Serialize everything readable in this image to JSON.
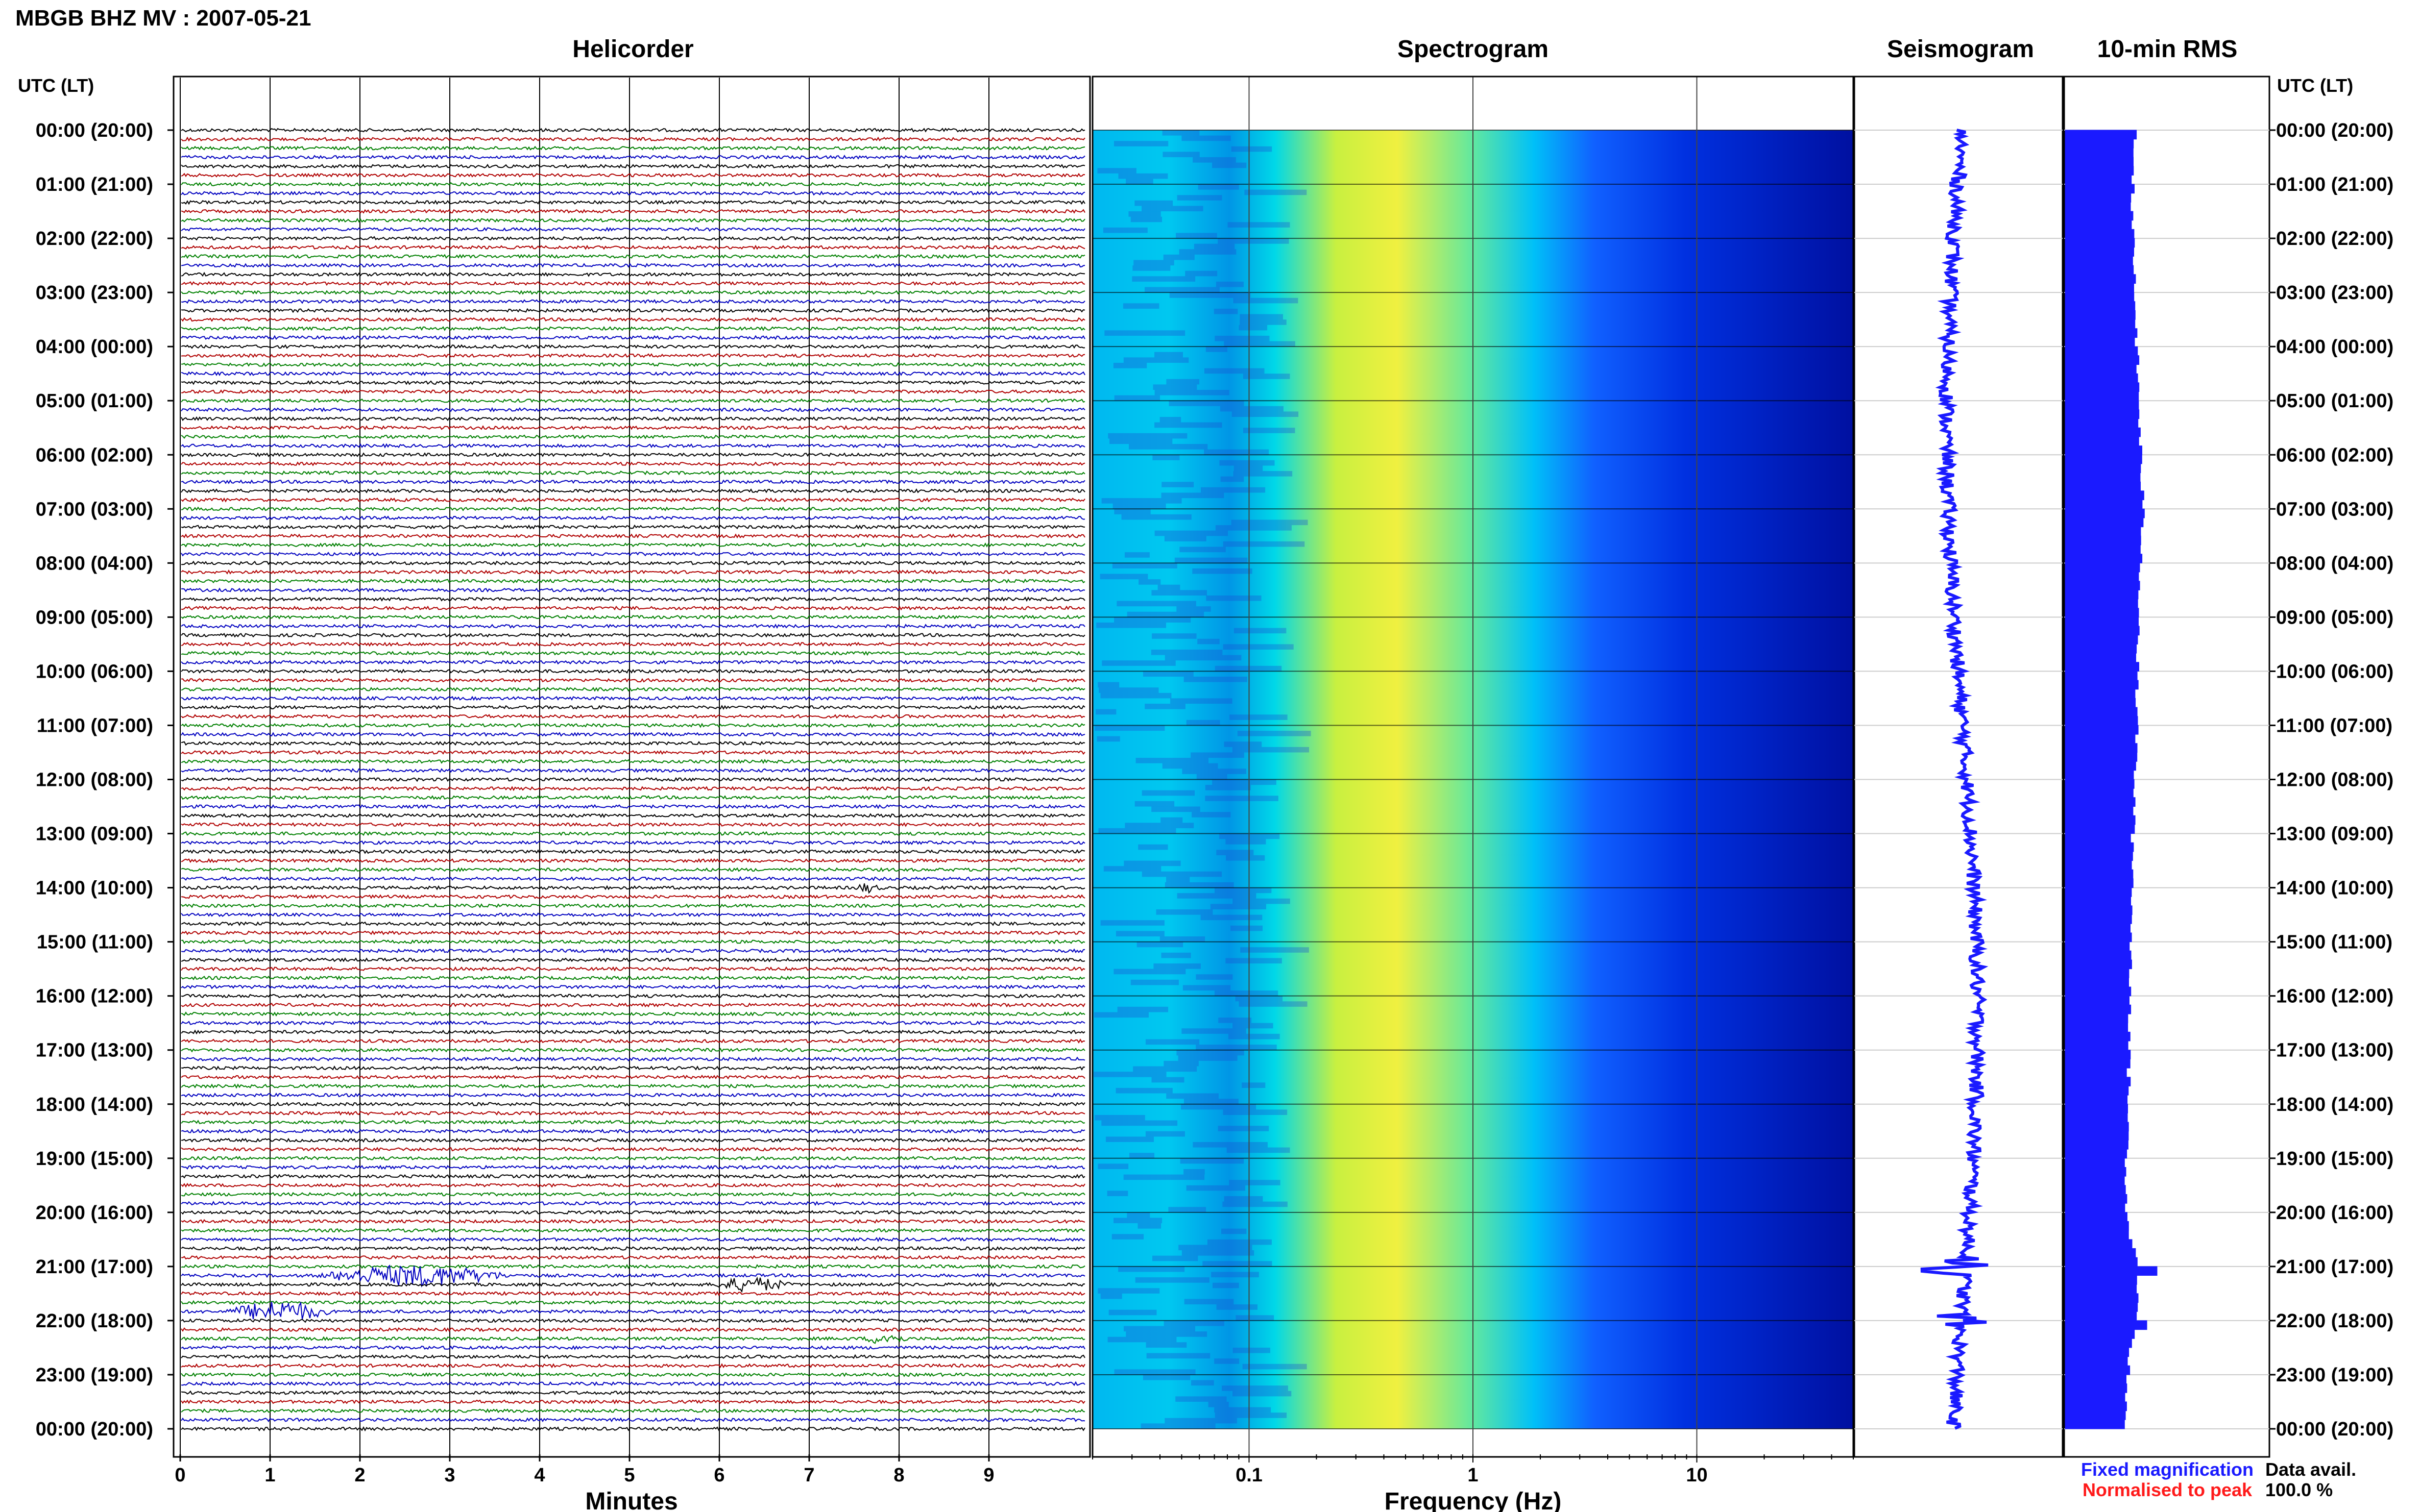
{
  "title": "MBGB BHZ MV : 2007-05-21",
  "panels": {
    "helicorder": "Helicorder",
    "spectrogram": "Spectrogram",
    "seismogram": "Seismogram",
    "rms": "10-min RMS"
  },
  "time_axis_label": "UTC (LT)",
  "legend": {
    "fixed": "Fixed magnification",
    "normalised": "Normalised to peak",
    "fixed_color": "#1a1aff",
    "normalised_color": "#ff1a1a"
  },
  "data_avail_label": "Data avail.",
  "data_avail_value": "100.0 %",
  "chart_data": [
    {
      "type": "line",
      "name": "helicorder",
      "title": "Helicorder",
      "xlabel": "Minutes",
      "x_ticks": [
        "0",
        "1",
        "2",
        "3",
        "4",
        "5",
        "6",
        "7",
        "8",
        "9"
      ],
      "xlim": [
        0,
        10
      ],
      "row_labels": [
        "00:00 (20:00)",
        "01:00 (21:00)",
        "02:00 (22:00)",
        "03:00 (23:00)",
        "04:00 (00:00)",
        "05:00 (01:00)",
        "06:00 (02:00)",
        "07:00 (03:00)",
        "08:00 (04:00)",
        "09:00 (05:00)",
        "10:00 (06:00)",
        "11:00 (07:00)",
        "12:00 (08:00)",
        "13:00 (09:00)",
        "14:00 (10:00)",
        "15:00 (11:00)",
        "16:00 (12:00)",
        "17:00 (13:00)",
        "18:00 (14:00)",
        "19:00 (15:00)",
        "20:00 (16:00)",
        "21:00 (17:00)",
        "22:00 (18:00)",
        "23:00 (19:00)",
        "00:00 (20:00)"
      ],
      "trace_colors": [
        "#000000",
        "#b00000",
        "#008000",
        "#0000c0"
      ],
      "lines_per_hour": 6,
      "events": [
        {
          "hour": 21,
          "row": 1,
          "start_min": 1.5,
          "end_min": 3.7,
          "amplitude": 3.0
        },
        {
          "hour": 21,
          "row": 2,
          "start_min": 5.9,
          "end_min": 6.8,
          "amplitude": 2.0
        },
        {
          "hour": 21,
          "row": 5,
          "start_min": 0.5,
          "end_min": 1.7,
          "amplitude": 3.0
        },
        {
          "hour": 14,
          "row": 0,
          "start_min": 7.5,
          "end_min": 7.8,
          "amplitude": 1.2
        },
        {
          "hour": 22,
          "row": 2,
          "start_min": 7.6,
          "end_min": 8.1,
          "amplitude": 1.5
        }
      ]
    },
    {
      "type": "heatmap",
      "name": "spectrogram",
      "title": "Spectrogram",
      "xlabel": "Frequency (Hz)",
      "x_scale": "log",
      "xlim": [
        0.02,
        50
      ],
      "x_ticks": [
        {
          "value": 0.1,
          "label": "0.1"
        },
        {
          "value": 1,
          "label": "1"
        },
        {
          "value": 10,
          "label": "10"
        }
      ],
      "colormap": [
        "#000080",
        "#0000ff",
        "#0080ff",
        "#00ffff",
        "#ffff00"
      ]
    },
    {
      "type": "line",
      "name": "seismogram",
      "title": "Seismogram",
      "color": "#1a1aff"
    },
    {
      "type": "bar",
      "name": "rms",
      "title": "10-min RMS",
      "color": "#1a1aff",
      "hourly_level": [
        0.34,
        0.33,
        0.33,
        0.34,
        0.35,
        0.36,
        0.37,
        0.38,
        0.37,
        0.36,
        0.35,
        0.35,
        0.34,
        0.33,
        0.33,
        0.32,
        0.32,
        0.31,
        0.31,
        0.3,
        0.3,
        0.36,
        0.34,
        0.3,
        0.29
      ],
      "spikes": [
        {
          "hour": 21.0,
          "value": 0.45
        },
        {
          "hour": 22.0,
          "value": 0.4
        }
      ]
    }
  ]
}
